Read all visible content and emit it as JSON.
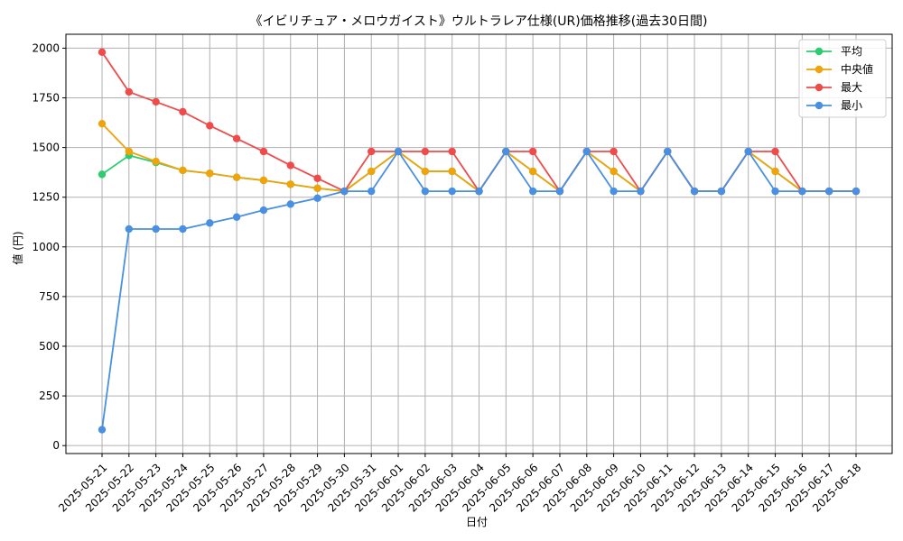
{
  "chart_data": {
    "type": "line",
    "title": "《イビリチュア・メロウガイスト》ウルトラレア仕様(UR)価格推移(過去30日間)",
    "xlabel": "日付",
    "ylabel": "値 (円)",
    "ylim": [
      0,
      2050
    ],
    "yticks": [
      0,
      250,
      500,
      750,
      1000,
      1250,
      1500,
      1750,
      2000
    ],
    "grid": true,
    "legend_position": "top-right",
    "categories": [
      "2025-05-21",
      "2025-05-22",
      "2025-05-23",
      "2025-05-24",
      "2025-05-25",
      "2025-05-26",
      "2025-05-27",
      "2025-05-28",
      "2025-05-29",
      "2025-05-30",
      "2025-05-31",
      "2025-06-01",
      "2025-06-02",
      "2025-06-03",
      "2025-06-04",
      "2025-06-05",
      "2025-06-06",
      "2025-06-07",
      "2025-06-08",
      "2025-06-09",
      "2025-06-10",
      "2025-06-11",
      "2025-06-12",
      "2025-06-13",
      "2025-06-14",
      "2025-06-15",
      "2025-06-16",
      "2025-06-17",
      "2025-06-18"
    ],
    "series": [
      {
        "name": "平均",
        "color": "#2ecc71",
        "values": [
          1365,
          1460,
          1425,
          1385,
          1370,
          1350,
          1335,
          1315,
          1295,
          1280,
          1380,
          1480,
          1380,
          1380,
          1280,
          1480,
          1380,
          1280,
          1480,
          1380,
          1280,
          1480,
          1280,
          1280,
          1480,
          1380,
          1280,
          1280,
          1280
        ]
      },
      {
        "name": "中央値",
        "color": "#f0a30a",
        "values": [
          1620,
          1480,
          1430,
          1385,
          1370,
          1350,
          1335,
          1315,
          1295,
          1280,
          1380,
          1480,
          1380,
          1380,
          1280,
          1480,
          1380,
          1280,
          1480,
          1380,
          1280,
          1480,
          1280,
          1280,
          1480,
          1380,
          1280,
          1280,
          1280
        ]
      },
      {
        "name": "最大",
        "color": "#ef4b4b",
        "values": [
          1980,
          1780,
          1730,
          1680,
          1610,
          1545,
          1480,
          1410,
          1345,
          1280,
          1480,
          1480,
          1480,
          1480,
          1280,
          1480,
          1480,
          1280,
          1480,
          1480,
          1280,
          1480,
          1280,
          1280,
          1480,
          1480,
          1280,
          1280,
          1280
        ]
      },
      {
        "name": "最小",
        "color": "#4a90e2",
        "values": [
          80,
          1090,
          1090,
          1090,
          1120,
          1150,
          1185,
          1215,
          1245,
          1280,
          1280,
          1480,
          1280,
          1280,
          1280,
          1480,
          1280,
          1280,
          1480,
          1280,
          1280,
          1480,
          1280,
          1280,
          1480,
          1280,
          1280,
          1280,
          1280
        ]
      }
    ]
  }
}
